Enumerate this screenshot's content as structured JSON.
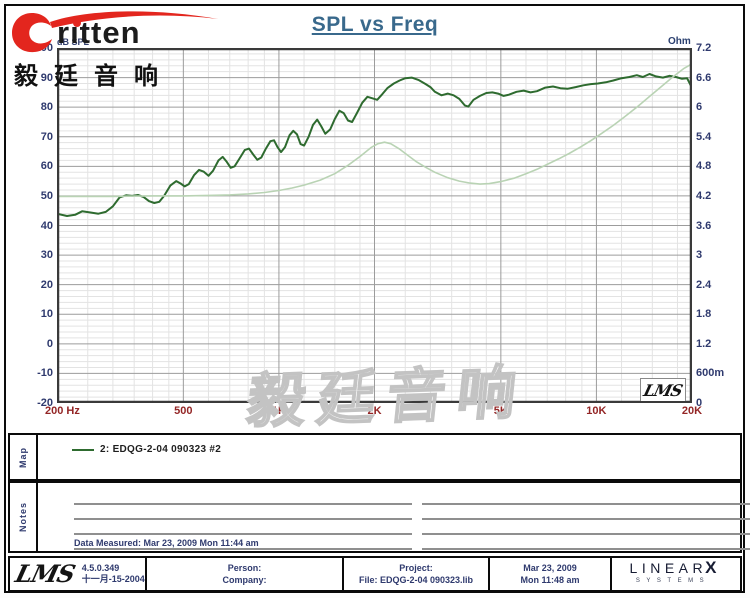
{
  "page": {
    "title": "SPL vs Freq"
  },
  "brand": {
    "name": "eritten",
    "text_display": "rıtten",
    "swoosh_color": "#e3261e",
    "company_cn": "毅廷音响"
  },
  "watermark_text": "毅廷音响",
  "chart": {
    "corner_logo": "LMS",
    "y_left_unit": "dB SPL",
    "y_right_unit": "Ohm"
  },
  "chart_data": {
    "type": "line",
    "title": "SPL vs Freq",
    "grid": true,
    "x_axis": {
      "scale": "log",
      "unit": "Hz",
      "min": 200,
      "max": 20000,
      "major_ticks": [
        200,
        500,
        1000,
        2000,
        5000,
        10000,
        20000
      ],
      "tick_labels": [
        "200 Hz",
        "500",
        "1K",
        "2K",
        "5K",
        "10K",
        "20K"
      ],
      "minor_gridlines": [
        250,
        300,
        350,
        400,
        450,
        600,
        700,
        800,
        900,
        1200,
        1500,
        1800,
        2500,
        3000,
        3500,
        4000,
        4500,
        6000,
        7000,
        8000,
        9000,
        12000,
        15000,
        18000
      ]
    },
    "y_left_axis": {
      "label": "dB SPL",
      "min": -20,
      "max": 100,
      "major_step": 10,
      "minor_step": 2,
      "tick_labels": [
        "100",
        "90",
        "80",
        "70",
        "60",
        "50",
        "40",
        "30",
        "20",
        "10",
        "0",
        "-10",
        "-20"
      ]
    },
    "y_right_axis": {
      "label": "Ohm",
      "min": 0,
      "max": 7.2,
      "tick_labels": [
        "7.2",
        "6.6",
        "6",
        "5.4",
        "4.8",
        "4.2",
        "3.6",
        "3",
        "2.4",
        "1.8",
        "1.2",
        "600m",
        "0"
      ]
    },
    "series": [
      {
        "name": "2: EDQG-2-04 090323 #2 (SPL)",
        "axis": "left",
        "color": "#2e6b2f",
        "width": 2,
        "points": [
          [
            200,
            44
          ],
          [
            215,
            43.2
          ],
          [
            228,
            43.6
          ],
          [
            240,
            44.8
          ],
          [
            255,
            44.4
          ],
          [
            270,
            44.0
          ],
          [
            285,
            44.6
          ],
          [
            300,
            46.5
          ],
          [
            315,
            49.5
          ],
          [
            330,
            50.2
          ],
          [
            345,
            50.0
          ],
          [
            360,
            50.3
          ],
          [
            375,
            49.6
          ],
          [
            390,
            48.2
          ],
          [
            405,
            47.6
          ],
          [
            420,
            48.0
          ],
          [
            435,
            50.0
          ],
          [
            455,
            53.5
          ],
          [
            475,
            55.0
          ],
          [
            490,
            54.2
          ],
          [
            505,
            53.2
          ],
          [
            520,
            54.0
          ],
          [
            540,
            57.0
          ],
          [
            560,
            58.8
          ],
          [
            580,
            58.2
          ],
          [
            600,
            56.8
          ],
          [
            620,
            58.5
          ],
          [
            645,
            62.0
          ],
          [
            665,
            63.2
          ],
          [
            685,
            61.5
          ],
          [
            705,
            59.5
          ],
          [
            725,
            60.0
          ],
          [
            750,
            62.5
          ],
          [
            780,
            65.5
          ],
          [
            805,
            66.0
          ],
          [
            830,
            64.0
          ],
          [
            855,
            62.2
          ],
          [
            880,
            63.0
          ],
          [
            910,
            66.0
          ],
          [
            940,
            68.5
          ],
          [
            965,
            68.8
          ],
          [
            990,
            66.5
          ],
          [
            1015,
            64.8
          ],
          [
            1045,
            66.5
          ],
          [
            1080,
            70.5
          ],
          [
            1110,
            72.0
          ],
          [
            1140,
            70.8
          ],
          [
            1170,
            67.5
          ],
          [
            1200,
            67.0
          ],
          [
            1240,
            70.0
          ],
          [
            1280,
            74.0
          ],
          [
            1320,
            75.8
          ],
          [
            1360,
            73.5
          ],
          [
            1400,
            71.0
          ],
          [
            1450,
            72.5
          ],
          [
            1500,
            76.0
          ],
          [
            1550,
            78.8
          ],
          [
            1600,
            78.0
          ],
          [
            1650,
            75.5
          ],
          [
            1700,
            75.0
          ],
          [
            1760,
            78.0
          ],
          [
            1830,
            81.5
          ],
          [
            1900,
            83.5
          ],
          [
            1970,
            83.0
          ],
          [
            2040,
            82.5
          ],
          [
            2120,
            84.5
          ],
          [
            2200,
            86.5
          ],
          [
            2300,
            88.0
          ],
          [
            2400,
            89.0
          ],
          [
            2500,
            89.8
          ],
          [
            2620,
            90.0
          ],
          [
            2750,
            89.2
          ],
          [
            2900,
            87.8
          ],
          [
            3000,
            86.8
          ],
          [
            3100,
            85.2
          ],
          [
            3250,
            84.0
          ],
          [
            3400,
            84.6
          ],
          [
            3550,
            84.0
          ],
          [
            3700,
            82.8
          ],
          [
            3850,
            80.6
          ],
          [
            3950,
            80.2
          ],
          [
            4100,
            82.5
          ],
          [
            4300,
            83.8
          ],
          [
            4500,
            84.8
          ],
          [
            4700,
            85.0
          ],
          [
            4900,
            84.6
          ],
          [
            5100,
            83.8
          ],
          [
            5300,
            84.2
          ],
          [
            5600,
            85.2
          ],
          [
            5900,
            85.6
          ],
          [
            6200,
            85.0
          ],
          [
            6500,
            85.4
          ],
          [
            6900,
            86.6
          ],
          [
            7300,
            87.0
          ],
          [
            7700,
            86.4
          ],
          [
            8100,
            86.2
          ],
          [
            8600,
            86.8
          ],
          [
            9100,
            87.4
          ],
          [
            9600,
            87.8
          ],
          [
            10100,
            88.0
          ],
          [
            10700,
            88.4
          ],
          [
            11300,
            89.0
          ],
          [
            12000,
            89.8
          ],
          [
            12700,
            90.2
          ],
          [
            13400,
            90.8
          ],
          [
            14000,
            90.2
          ],
          [
            14700,
            91.2
          ],
          [
            15400,
            90.4
          ],
          [
            16200,
            90.0
          ],
          [
            17000,
            90.6
          ],
          [
            17800,
            90.2
          ],
          [
            18600,
            89.6
          ],
          [
            19300,
            89.8
          ],
          [
            20000,
            86.5
          ]
        ]
      },
      {
        "name": "Impedance (Ohm)",
        "axis": "right",
        "color": "#b9d3b4",
        "width": 1.6,
        "points": [
          [
            200,
            4.19
          ],
          [
            300,
            4.19
          ],
          [
            400,
            4.2
          ],
          [
            500,
            4.2
          ],
          [
            600,
            4.21
          ],
          [
            700,
            4.22
          ],
          [
            800,
            4.24
          ],
          [
            900,
            4.27
          ],
          [
            1000,
            4.31
          ],
          [
            1100,
            4.36
          ],
          [
            1200,
            4.42
          ],
          [
            1350,
            4.52
          ],
          [
            1500,
            4.65
          ],
          [
            1650,
            4.82
          ],
          [
            1800,
            5.0
          ],
          [
            1950,
            5.18
          ],
          [
            2050,
            5.26
          ],
          [
            2150,
            5.29
          ],
          [
            2250,
            5.26
          ],
          [
            2400,
            5.15
          ],
          [
            2550,
            5.02
          ],
          [
            2700,
            4.9
          ],
          [
            2900,
            4.78
          ],
          [
            3100,
            4.68
          ],
          [
            3400,
            4.57
          ],
          [
            3700,
            4.5
          ],
          [
            4000,
            4.46
          ],
          [
            4300,
            4.44
          ],
          [
            4600,
            4.45
          ],
          [
            5000,
            4.49
          ],
          [
            5500,
            4.56
          ],
          [
            6000,
            4.65
          ],
          [
            6500,
            4.74
          ],
          [
            7000,
            4.84
          ],
          [
            7600,
            4.95
          ],
          [
            8200,
            5.06
          ],
          [
            8900,
            5.19
          ],
          [
            9600,
            5.32
          ],
          [
            10400,
            5.47
          ],
          [
            11300,
            5.63
          ],
          [
            12300,
            5.81
          ],
          [
            13400,
            6.0
          ],
          [
            14600,
            6.2
          ],
          [
            15900,
            6.4
          ],
          [
            17300,
            6.6
          ],
          [
            18800,
            6.78
          ],
          [
            20000,
            6.88
          ]
        ]
      }
    ],
    "legend_entries": [
      "2: EDQG-2-04  090323  #2"
    ],
    "legend_position": "map panel below chart"
  },
  "map_section": {
    "label": "Map",
    "legend": {
      "swatch_color": "#2e6b2f",
      "text": "2: EDQG-2-04  090323  #2"
    }
  },
  "notes_section": {
    "label": "Notes",
    "data_measured": "Data Measured: Mar 23, 2009  Mon 11:44 am"
  },
  "footer": {
    "lms_logo": "LMS",
    "version": "4.5.0.349",
    "version_date": "十一月-15-2004",
    "person_label": "Person:",
    "company_label": "Company:",
    "project_label": "Project:",
    "file_label": "File: EDQG-2-04 090323.lib",
    "date": "Mar 23, 2009",
    "time": "Mon 11:48 am",
    "linearx": {
      "linear": "LINEAR",
      "x": "X",
      "systems": "SYSTEMS"
    }
  }
}
